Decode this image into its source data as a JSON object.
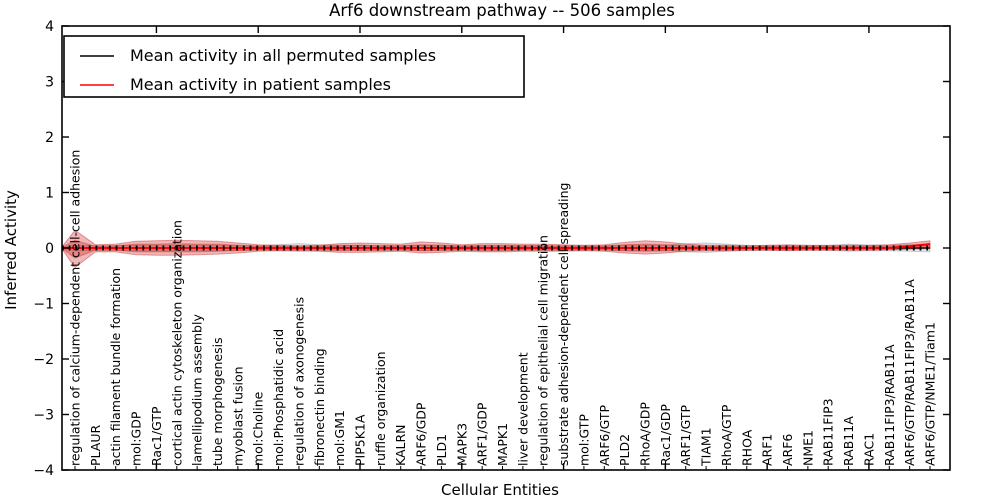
{
  "title": "Arf6 downstream pathway -- 506 samples",
  "legend": {
    "permuted_label": "Mean activity in all permuted samples",
    "patient_label": "Mean activity in patient samples",
    "permuted_color": "#000000",
    "patient_color": "#ff0000",
    "position": "upper left"
  },
  "chart_data": {
    "type": "line",
    "title": "Arf6 downstream pathway -- 506 samples",
    "xlabel": "Cellular Entities",
    "ylabel": "Inferred Activity",
    "ylim": [
      -4,
      4
    ],
    "yticks": [
      4,
      3,
      2,
      1,
      0,
      -1,
      -2,
      -3,
      -4
    ],
    "grid": false,
    "legend_position": "upper left",
    "categories": [
      "regulation of calcium-dependent cell-cell adhesion",
      "PLAUR",
      "actin filament bundle formation",
      "mol:GDP",
      "Rac1/GTP",
      "cortical actin cytoskeleton organization",
      "lamellipodium assembly",
      "tube morphogenesis",
      "myoblast fusion",
      "mol:Choline",
      "mol:Phosphatidic acid",
      "regulation of axonogenesis",
      "fibronectin binding",
      "mol:GM1",
      "PIP5K1A",
      "ruffle organization",
      "KALRN",
      "ARF6/GDP",
      "PLD1",
      "MAPK3",
      "ARF1/GDP",
      "MAPK1",
      "liver development",
      "regulation of epithelial cell migration",
      "substrate adhesion-dependent cell spreading",
      "mol:GTP",
      "ARF6/GTP",
      "PLD2",
      "RhoA/GDP",
      "Rac1/GDP",
      "ARF1/GTP",
      "TIAM1",
      "RhoA/GTP",
      "RHOA",
      "ARF1",
      "ARF6",
      "NME1",
      "RAB11FIP3",
      "RAB11A",
      "RAC1",
      "RAB11FIP3/RAB11A",
      "ARF6/GTP/RAB11FIP3/RAB11A",
      "ARF6/GTP/NME1/Tiam1"
    ],
    "series": [
      {
        "name": "Mean activity in all permuted samples",
        "color": "#000000",
        "values": [
          0,
          0,
          0,
          0,
          0,
          0,
          0,
          0,
          0,
          0,
          0,
          0,
          0,
          0,
          0,
          0,
          0,
          0,
          0,
          0,
          0,
          0,
          0,
          0,
          0,
          0,
          0,
          0,
          0,
          0,
          0,
          0,
          0,
          0,
          0,
          0,
          0,
          0,
          0,
          0,
          0,
          0,
          0
        ]
      },
      {
        "name": "Mean activity in patient samples",
        "color": "#ff0000",
        "values": [
          0,
          0,
          0,
          0,
          0,
          0,
          0,
          0,
          0,
          0,
          0,
          0,
          0,
          0,
          0,
          0,
          0,
          0,
          0,
          0,
          0,
          0,
          0,
          0,
          0,
          0,
          0,
          0,
          0,
          0,
          0,
          0,
          0,
          0,
          0,
          0,
          0,
          0,
          0,
          0,
          0,
          0.03,
          0.07
        ]
      }
    ],
    "bands": {
      "patient_outer_upper": [
        0.32,
        0.06,
        0.07,
        0.12,
        0.13,
        0.14,
        0.13,
        0.12,
        0.09,
        0.06,
        0.05,
        0.04,
        0.05,
        0.08,
        0.09,
        0.08,
        0.07,
        0.11,
        0.09,
        0.06,
        0.08,
        0.08,
        0.07,
        0.07,
        0.06,
        0.05,
        0.06,
        0.1,
        0.13,
        0.11,
        0.07,
        0.05,
        0.05,
        0.04,
        0.05,
        0.06,
        0.05,
        0.05,
        0.05,
        0.05,
        0.06,
        0.09,
        0.13
      ],
      "patient_outer_lower": [
        -0.35,
        -0.07,
        -0.07,
        -0.12,
        -0.13,
        -0.13,
        -0.12,
        -0.11,
        -0.09,
        -0.06,
        -0.05,
        -0.05,
        -0.06,
        -0.08,
        -0.08,
        -0.07,
        -0.06,
        -0.09,
        -0.08,
        -0.06,
        -0.07,
        -0.07,
        -0.06,
        -0.06,
        -0.06,
        -0.05,
        -0.06,
        -0.09,
        -0.11,
        -0.09,
        -0.06,
        -0.05,
        -0.05,
        -0.04,
        -0.04,
        -0.05,
        -0.04,
        -0.04,
        -0.04,
        -0.04,
        -0.03,
        -0.02,
        -0.01
      ],
      "patient_inner_upper": [
        0.14,
        0.03,
        0.04,
        0.07,
        0.07,
        0.08,
        0.07,
        0.07,
        0.05,
        0.03,
        0.03,
        0.02,
        0.03,
        0.04,
        0.05,
        0.04,
        0.04,
        0.06,
        0.05,
        0.03,
        0.04,
        0.04,
        0.04,
        0.04,
        0.03,
        0.03,
        0.03,
        0.06,
        0.07,
        0.06,
        0.04,
        0.03,
        0.03,
        0.02,
        0.03,
        0.03,
        0.03,
        0.03,
        0.03,
        0.03,
        0.03,
        0.05,
        0.08
      ],
      "patient_inner_lower": [
        -0.18,
        -0.04,
        -0.04,
        -0.07,
        -0.07,
        -0.07,
        -0.07,
        -0.06,
        -0.05,
        -0.03,
        -0.03,
        -0.03,
        -0.03,
        -0.04,
        -0.04,
        -0.04,
        -0.03,
        -0.05,
        -0.04,
        -0.03,
        -0.04,
        -0.04,
        -0.03,
        -0.03,
        -0.03,
        -0.03,
        -0.03,
        -0.05,
        -0.06,
        -0.05,
        -0.03,
        -0.03,
        -0.03,
        -0.02,
        -0.02,
        -0.03,
        -0.02,
        -0.02,
        -0.02,
        -0.02,
        -0.02,
        -0.01,
        0.0
      ],
      "permuted_upper": [
        0.05,
        0.04,
        0.04,
        0.05,
        0.05,
        0.05,
        0.05,
        0.05,
        0.04,
        0.04,
        0.06,
        0.08,
        0.06,
        0.05,
        0.05,
        0.04,
        0.04,
        0.05,
        0.05,
        0.04,
        0.05,
        0.05,
        0.04,
        0.04,
        0.04,
        0.04,
        0.04,
        0.05,
        0.05,
        0.05,
        0.08,
        0.09,
        0.07,
        0.05,
        0.04,
        0.04,
        0.04,
        0.04,
        0.07,
        0.05,
        0.05,
        0.06,
        0.07
      ],
      "permuted_lower": [
        -0.05,
        -0.04,
        -0.04,
        -0.05,
        -0.05,
        -0.05,
        -0.05,
        -0.05,
        -0.04,
        -0.04,
        -0.05,
        -0.06,
        -0.05,
        -0.05,
        -0.05,
        -0.04,
        -0.04,
        -0.05,
        -0.05,
        -0.04,
        -0.05,
        -0.05,
        -0.04,
        -0.04,
        -0.04,
        -0.04,
        -0.04,
        -0.05,
        -0.05,
        -0.05,
        -0.07,
        -0.08,
        -0.06,
        -0.05,
        -0.04,
        -0.04,
        -0.04,
        -0.04,
        -0.06,
        -0.05,
        -0.05,
        -0.06,
        -0.07
      ]
    }
  }
}
